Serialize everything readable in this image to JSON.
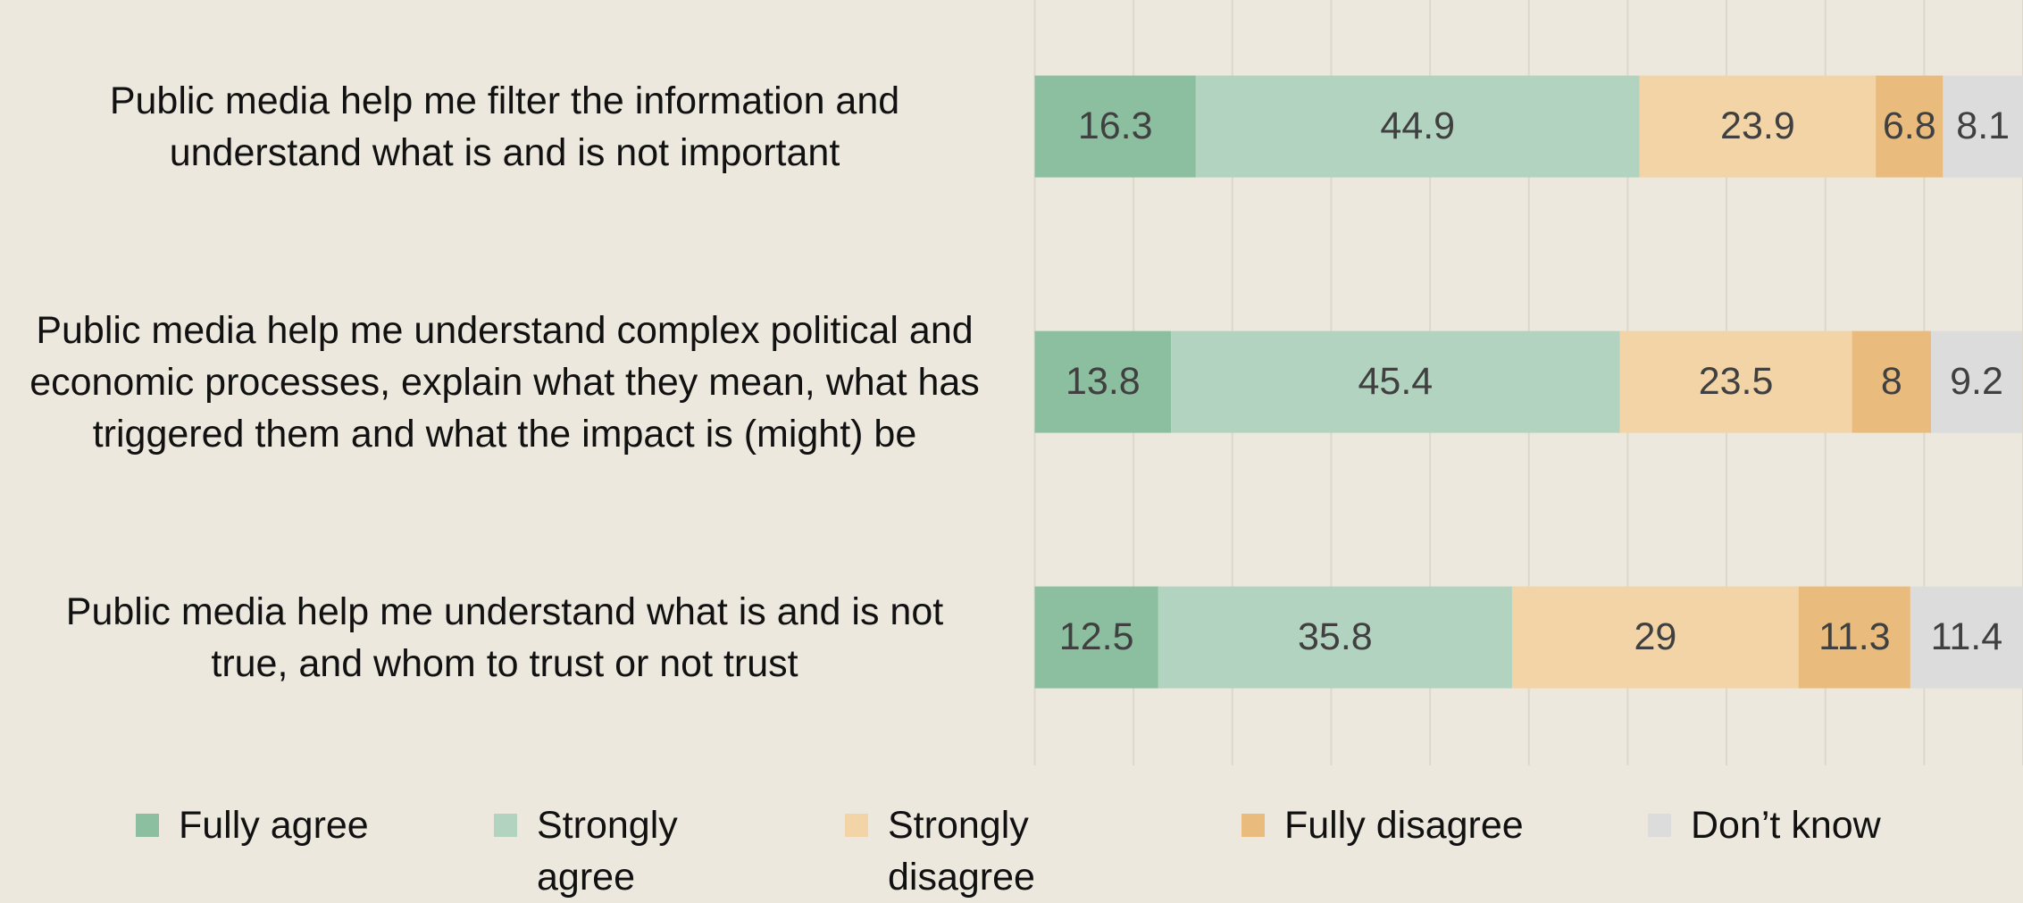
{
  "chart_data": {
    "type": "stacked_barh",
    "categories": [
      "Public media help me filter the information and understand what is and is not important",
      "Public media help me understand complex political and economic processes, explain what they mean, what has triggered them and what the impact is (might) be",
      "Public media help me understand what is and is not true, and whom to trust or not trust"
    ],
    "series": [
      {
        "name": "Fully agree",
        "color": "#8bbf9f",
        "values": [
          16.3,
          13.8,
          12.5
        ]
      },
      {
        "name": "Strongly agree",
        "color": "#b2d3bf",
        "values": [
          44.9,
          45.4,
          35.8
        ]
      },
      {
        "name": "Strongly disagree",
        "color": "#f2d4a6",
        "values": [
          23.9,
          23.5,
          29
        ]
      },
      {
        "name": "Fully disagree",
        "color": "#e9bc7d",
        "values": [
          6.8,
          8,
          11.3
        ]
      },
      {
        "name": "Don’t know",
        "color": "#dcdcdc",
        "values": [
          8.1,
          9.2,
          11.4
        ]
      }
    ],
    "xlim": [
      0,
      100
    ],
    "xticks": [
      0,
      10,
      20,
      30,
      40,
      50,
      60,
      70,
      80,
      90,
      100
    ],
    "grid": true
  }
}
